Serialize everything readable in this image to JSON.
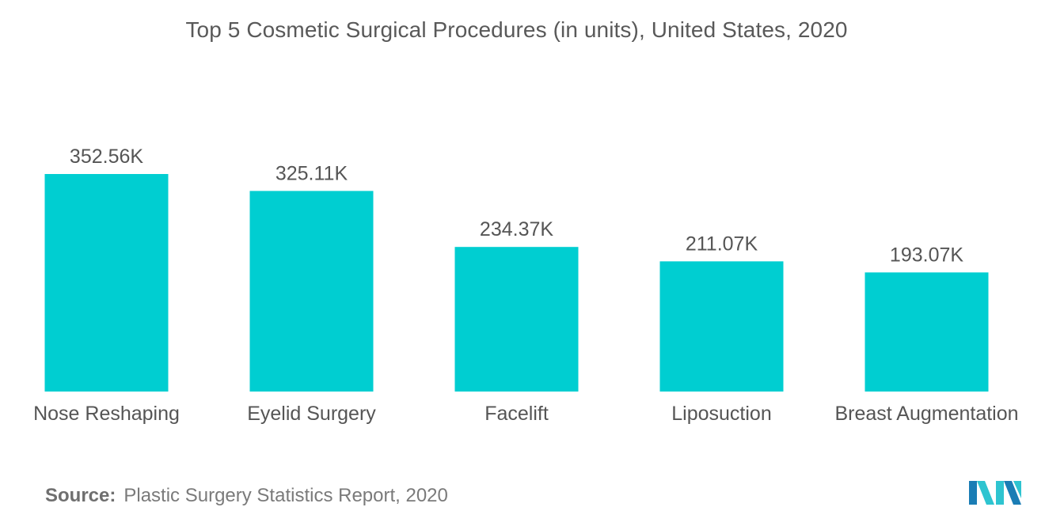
{
  "chart_data": {
    "type": "bar",
    "title": "Top 5 Cosmetic Surgical Procedures (in units), United States, 2020",
    "categories": [
      "Nose Reshaping",
      "Eyelid Surgery",
      "Facelift",
      "Liposuction",
      "Breast Augmentation"
    ],
    "values": [
      352.56,
      325.11,
      234.37,
      211.07,
      193.07
    ],
    "value_labels": [
      "352.56K",
      "325.11K",
      "234.37K",
      "211.07K",
      "193.07K"
    ],
    "unit": "K",
    "ylim": [
      0,
      352.56
    ],
    "grid": false,
    "legend": "none",
    "colors": {
      "bar": "#00CED1",
      "label": "#555555"
    }
  },
  "source": {
    "label": "Source:",
    "text": "Plastic Surgery Statistics Report, 2020"
  },
  "logo": {
    "icon": "mordor-intelligence-logo",
    "colors": [
      "#1A7DB5",
      "#2EC4D0"
    ]
  }
}
